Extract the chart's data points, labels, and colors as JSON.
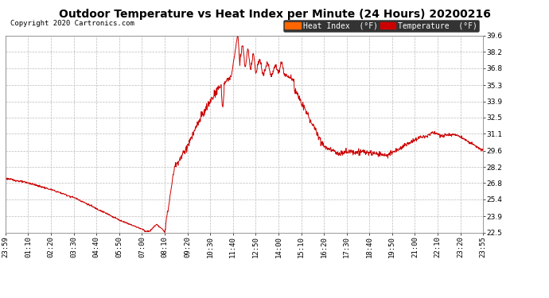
{
  "title": "Outdoor Temperature vs Heat Index per Minute (24 Hours) 20200216",
  "copyright": "Copyright 2020 Cartronics.com",
  "legend_labels": [
    "Heat Index  (°F)",
    "Temperature  (°F)"
  ],
  "legend_colors": [
    "#ff6600",
    "#cc0000"
  ],
  "line_color": "#cc0000",
  "background_color": "#ffffff",
  "plot_bg_color": "#ffffff",
  "ylim": [
    22.5,
    39.6
  ],
  "yticks": [
    22.5,
    23.9,
    25.4,
    26.8,
    28.2,
    29.6,
    31.1,
    32.5,
    33.9,
    35.3,
    36.8,
    38.2,
    39.6
  ],
  "xtick_labels": [
    "23:59",
    "01:10",
    "02:20",
    "03:30",
    "04:40",
    "05:50",
    "07:00",
    "08:10",
    "09:20",
    "10:30",
    "11:40",
    "12:50",
    "14:00",
    "15:10",
    "16:20",
    "17:30",
    "18:40",
    "19:50",
    "21:00",
    "22:10",
    "23:20",
    "23:55"
  ],
  "grid_color": "#bbbbbb",
  "title_fontsize": 10,
  "tick_fontsize": 6.5,
  "copyright_fontsize": 6.5,
  "legend_fontsize": 7
}
